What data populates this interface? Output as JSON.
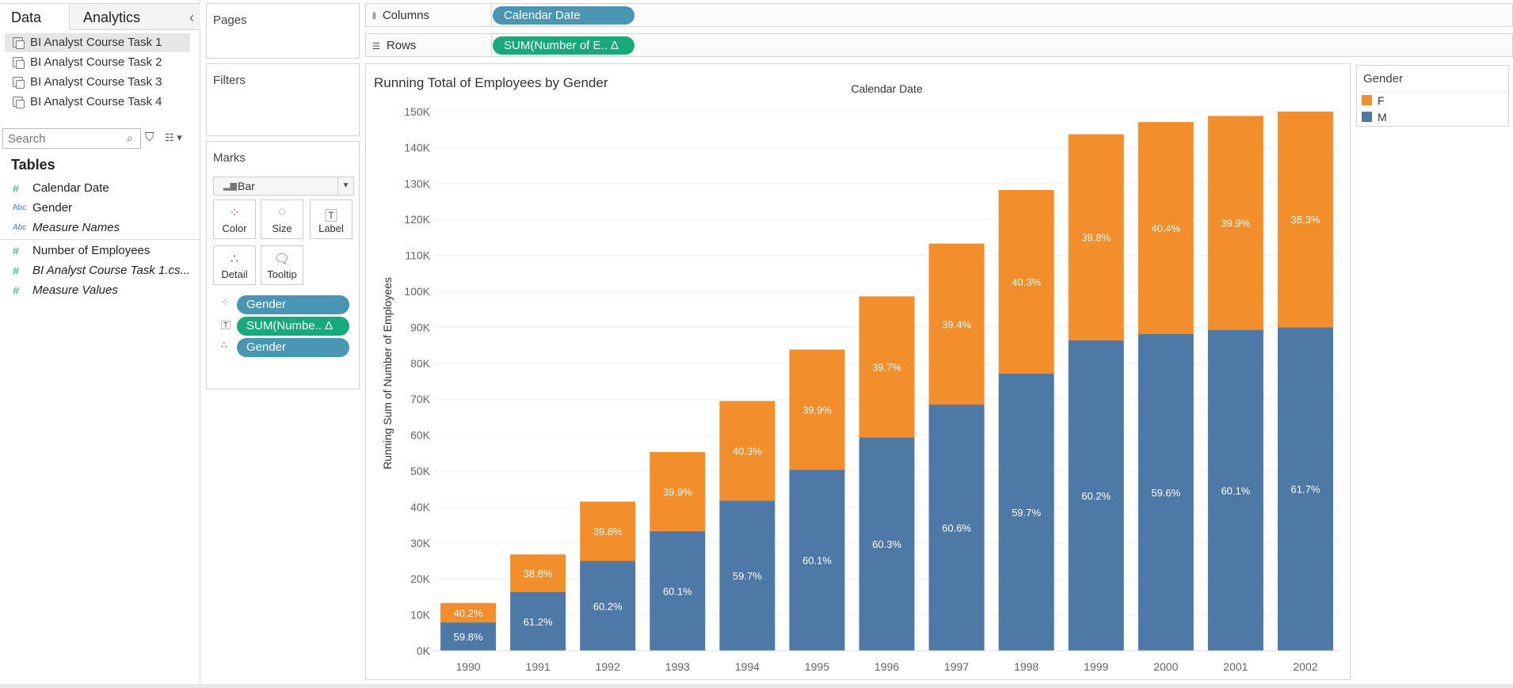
{
  "data_pane": {
    "tabs": [
      "Data",
      "Analytics"
    ],
    "datasources": [
      "BI Analyst Course Task 1",
      "BI Analyst Course Task 2",
      "BI Analyst Course Task 3",
      "BI Analyst Course Task 4"
    ],
    "search_placeholder": "Search",
    "tables_label": "Tables",
    "fields": [
      {
        "name": "Calendar Date",
        "type": "#",
        "italic": false
      },
      {
        "name": "Gender",
        "type": "Abc",
        "italic": false
      },
      {
        "name": "Measure Names",
        "type": "Abc",
        "italic": true
      },
      {
        "name": "Number of Employees",
        "type": "#",
        "italic": false
      },
      {
        "name": "BI Analyst Course Task 1.cs...",
        "type": "#",
        "italic": true
      },
      {
        "name": "Measure Values",
        "type": "#",
        "italic": true
      }
    ]
  },
  "cards": {
    "pages": "Pages",
    "filters": "Filters",
    "marks": "Marks",
    "mark_type": "Bar",
    "mark_buttons": [
      "Color",
      "Size",
      "Label",
      "Detail",
      "Tooltip"
    ],
    "mark_pills": [
      "Gender",
      "SUM(Numbe.. Δ",
      "Gender"
    ]
  },
  "shelves": {
    "columns_label": "Columns",
    "columns_pill": "Calendar Date",
    "rows_label": "Rows",
    "rows_pill": "SUM(Number of E.. Δ"
  },
  "legend": {
    "title": "Gender",
    "items": [
      {
        "label": "F",
        "color": "#f28e2b"
      },
      {
        "label": "M",
        "color": "#4e79a7"
      }
    ]
  },
  "colors": {
    "F": "#f28e2b",
    "M": "#4e79a7",
    "pill_dimension": "#4996b2",
    "pill_measure": "#17a97a"
  },
  "chart_data": {
    "type": "bar",
    "stacked": true,
    "title": "Running Total of Employees by Gender",
    "xlabel": "Calendar Date",
    "ylabel": "Running Sum of Number of Employees",
    "categories": [
      "1990",
      "1991",
      "1992",
      "1993",
      "1994",
      "1995",
      "1996",
      "1997",
      "1998",
      "1999",
      "2000",
      "2001",
      "2002"
    ],
    "ylim": [
      0,
      150000
    ],
    "y_ticks": [
      0,
      10000,
      20000,
      30000,
      40000,
      50000,
      60000,
      70000,
      80000,
      90000,
      100000,
      110000,
      120000,
      130000,
      140000,
      150000
    ],
    "y_tick_labels": [
      "0K",
      "10K",
      "20K",
      "30K",
      "40K",
      "50K",
      "60K",
      "70K",
      "80K",
      "90K",
      "100K",
      "110K",
      "120K",
      "130K",
      "140K",
      "150K"
    ],
    "series": [
      {
        "name": "M",
        "values": [
          7900,
          16300,
          25000,
          33300,
          41800,
          50400,
          59400,
          68500,
          77100,
          86400,
          88100,
          89300,
          90000
        ],
        "labels": [
          "59.8%",
          "61.2%",
          "60.2%",
          "60.1%",
          "59.7%",
          "60.1%",
          "60.3%",
          "60.6%",
          "59.7%",
          "60.2%",
          "59.6%",
          "60.1%",
          "61.7%"
        ]
      },
      {
        "name": "F",
        "values": [
          5400,
          10500,
          16500,
          22000,
          27700,
          33400,
          39200,
          44800,
          51100,
          57300,
          59000,
          59500,
          60000
        ],
        "labels": [
          "40.2%",
          "38.8%",
          "39.8%",
          "39.9%",
          "40.3%",
          "39.9%",
          "39.7%",
          "39.4%",
          "40.3%",
          "39.8%",
          "40.4%",
          "39.9%",
          "38.3%"
        ]
      }
    ]
  }
}
